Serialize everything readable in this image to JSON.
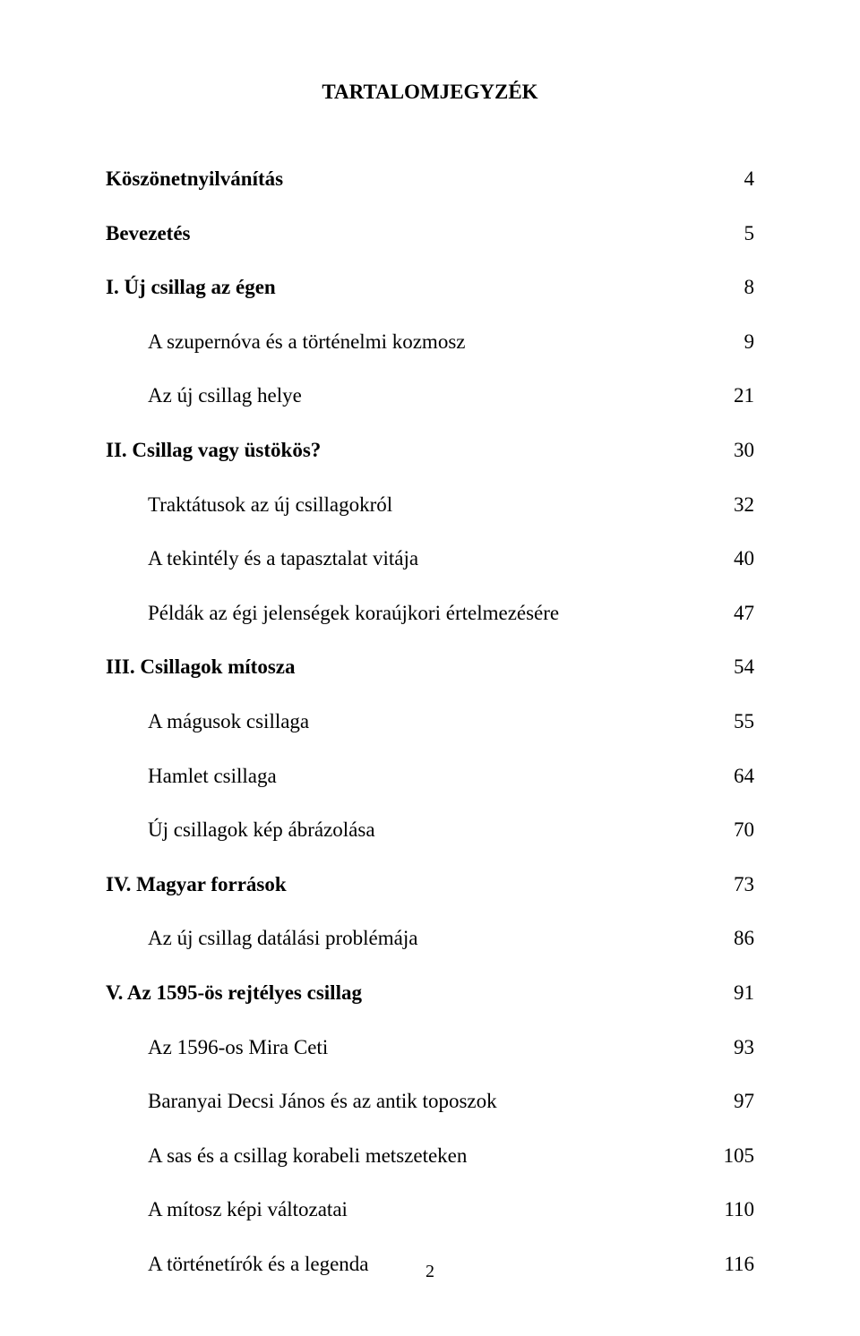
{
  "title": "TARTALOMJEGYZÉK",
  "entries": [
    {
      "label": "Köszönetnyilvánítás",
      "page": "4",
      "bold": true,
      "indent": false
    },
    {
      "label": "Bevezetés",
      "page": "5",
      "bold": true,
      "indent": false
    },
    {
      "label": "I. Új csillag az égen",
      "page": "8",
      "bold": true,
      "indent": false
    },
    {
      "label": "A szupernóva és a történelmi kozmosz",
      "page": "9",
      "bold": false,
      "indent": true
    },
    {
      "label": "Az új csillag helye",
      "page": "21",
      "bold": false,
      "indent": true
    },
    {
      "label": "II. Csillag vagy üstökös?",
      "page": "30",
      "bold": true,
      "indent": false
    },
    {
      "label": "Traktátusok az új csillagokról",
      "page": "32",
      "bold": false,
      "indent": true
    },
    {
      "label": "A tekintély és a tapasztalat vitája",
      "page": "40",
      "bold": false,
      "indent": true
    },
    {
      "label": "Példák az égi jelenségek koraújkori értelmezésére",
      "page": "47",
      "bold": false,
      "indent": true
    },
    {
      "label": "III. Csillagok mítosza",
      "page": "54",
      "bold": true,
      "indent": false
    },
    {
      "label": "A mágusok csillaga",
      "page": "55",
      "bold": false,
      "indent": true
    },
    {
      "label": "Hamlet csillaga",
      "page": "64",
      "bold": false,
      "indent": true
    },
    {
      "label": "Új csillagok kép ábrázolása",
      "page": "70",
      "bold": false,
      "indent": true
    },
    {
      "label": "IV. Magyar források",
      "page": "73",
      "bold": true,
      "indent": false
    },
    {
      "label": "Az új csillag datálási problémája",
      "page": "86",
      "bold": false,
      "indent": true
    },
    {
      "label": "V. Az 1595-ös rejtélyes csillag",
      "page": "91",
      "bold": true,
      "indent": false
    },
    {
      "label": "Az 1596-os Mira Ceti",
      "page": "93",
      "bold": false,
      "indent": true
    },
    {
      "label": "Baranyai Decsi János és az antik toposzok",
      "page": "97",
      "bold": false,
      "indent": true
    },
    {
      "label": "A sas és a csillag korabeli metszeteken",
      "page": "105",
      "bold": false,
      "indent": true
    },
    {
      "label": "A mítosz képi változatai",
      "page": "110",
      "bold": false,
      "indent": true
    },
    {
      "label": "A történetírók és a legenda",
      "page": "116",
      "bold": false,
      "indent": true
    }
  ],
  "page_number": "2",
  "colors": {
    "background": "#ffffff",
    "text": "#000000"
  },
  "typography": {
    "title_fontsize": 23,
    "entry_fontsize": 23,
    "page_number_fontsize": 20,
    "font_family": "Times New Roman"
  }
}
